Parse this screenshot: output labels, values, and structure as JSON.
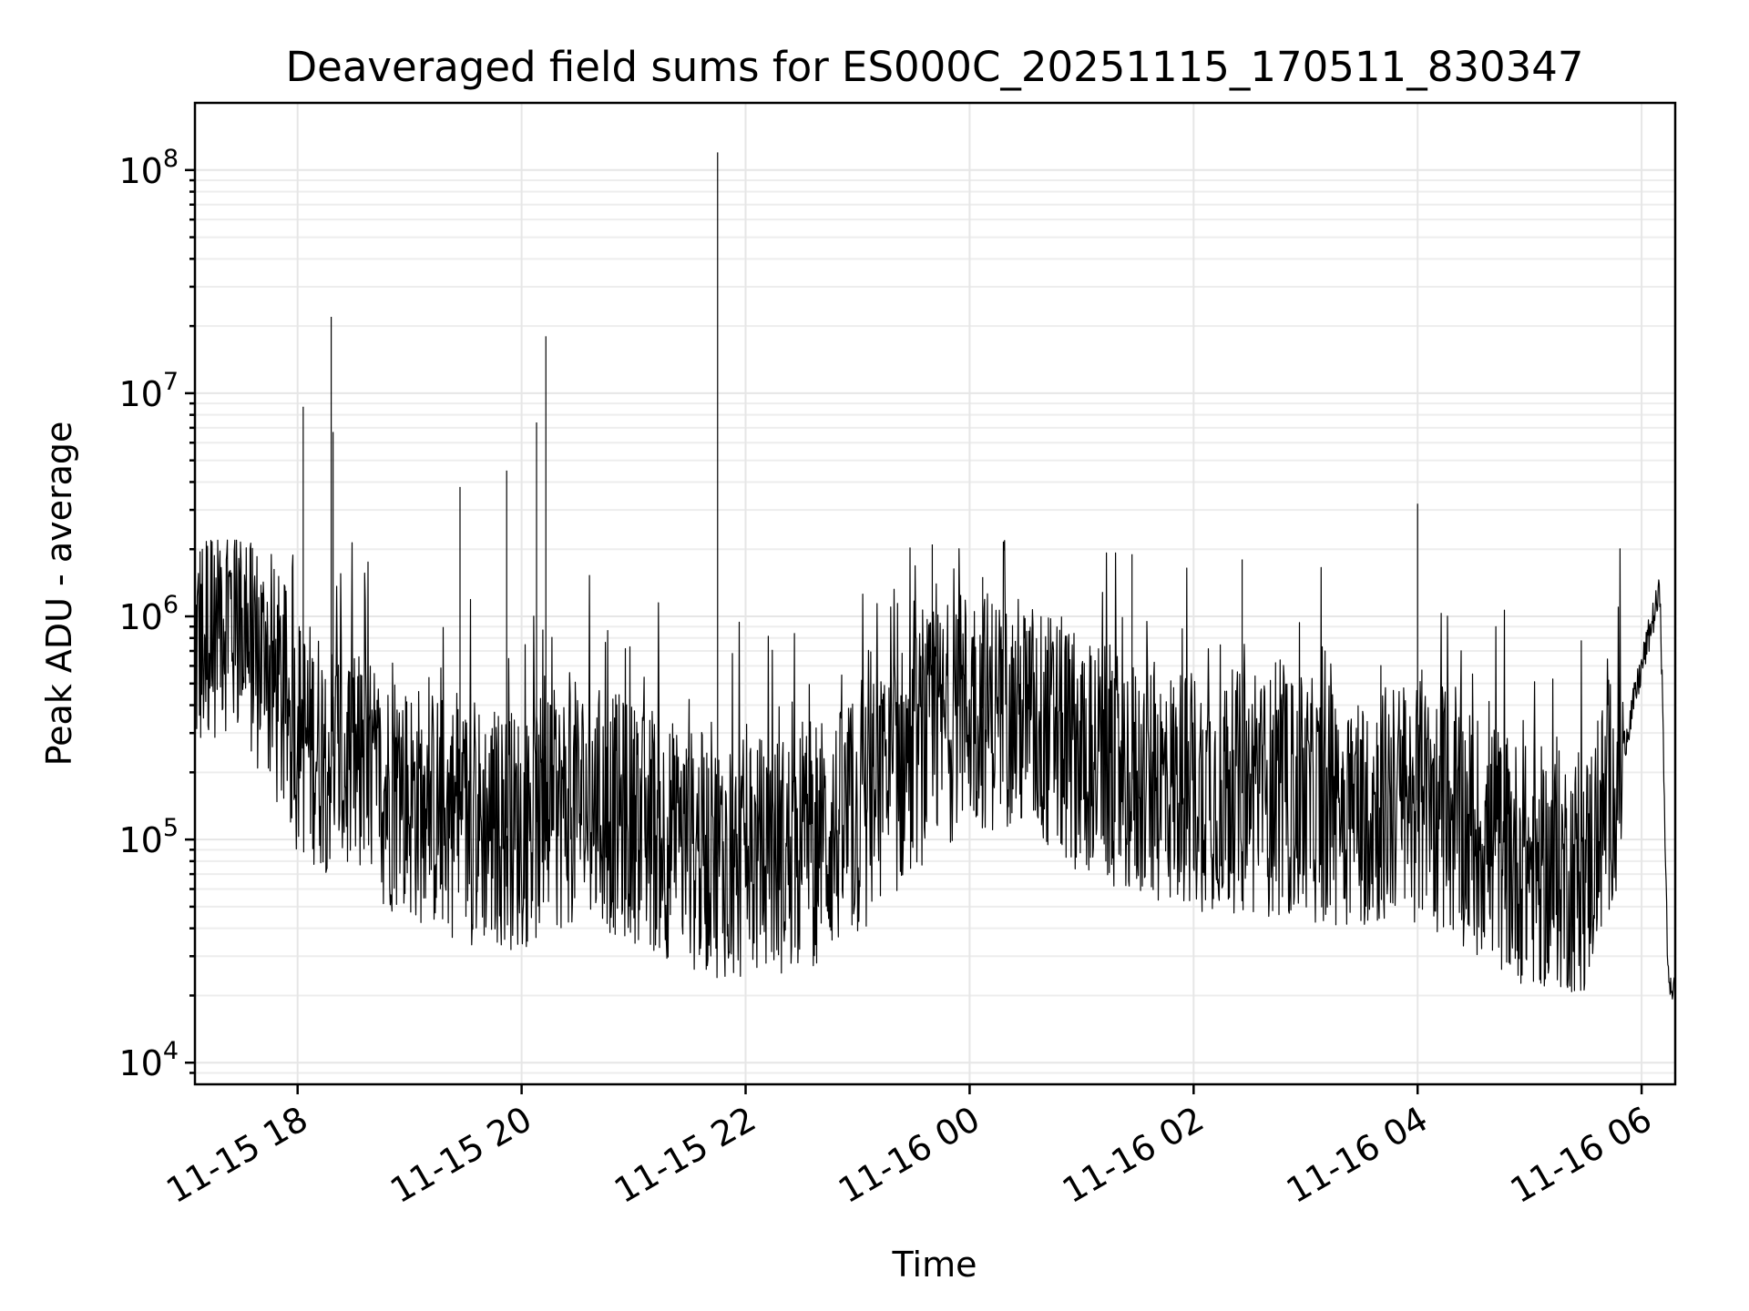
{
  "chart_data": {
    "type": "line",
    "title": "Deaveraged field sums for ES000C_20251115_170511_830347",
    "xlabel": "Time",
    "ylabel": "Peak ADU - average",
    "x_scale": "time",
    "y_scale": "log",
    "xlim": [
      "2025-11-15 17:05",
      "2025-11-16 06:18"
    ],
    "ylim": [
      8000,
      200000000
    ],
    "grid": true,
    "legend": "none",
    "colors": {
      "series": "#000000",
      "grid": "#e6e6e6",
      "frame": "#000000"
    },
    "x_ticks": [
      {
        "value": "2025-11-15 18:00",
        "label": "11-15 18"
      },
      {
        "value": "2025-11-15 20:00",
        "label": "11-15 20"
      },
      {
        "value": "2025-11-15 22:00",
        "label": "11-15 22"
      },
      {
        "value": "2025-11-16 00:00",
        "label": "11-16 00"
      },
      {
        "value": "2025-11-16 02:00",
        "label": "11-16 02"
      },
      {
        "value": "2025-11-16 04:00",
        "label": "11-16 04"
      },
      {
        "value": "2025-11-16 06:00",
        "label": "11-16 06"
      }
    ],
    "y_ticks": [
      {
        "value": 10000,
        "base": "10",
        "exp": "4"
      },
      {
        "value": 100000,
        "base": "10",
        "exp": "5"
      },
      {
        "value": 1000000,
        "base": "10",
        "exp": "6"
      },
      {
        "value": 10000000,
        "base": "10",
        "exp": "7"
      },
      {
        "value": 100000000,
        "base": "10",
        "exp": "8"
      }
    ],
    "series": [
      {
        "name": "",
        "x": [
          "2025-11-15 17:05",
          "2025-11-15 17:20",
          "2025-11-15 17:35",
          "2025-11-15 18:00",
          "2025-11-15 18:15",
          "2025-11-15 18:30",
          "2025-11-15 19:00",
          "2025-11-15 19:30",
          "2025-11-15 20:00",
          "2025-11-15 20:30",
          "2025-11-15 21:00",
          "2025-11-15 21:30",
          "2025-11-15 22:00",
          "2025-11-15 22:30",
          "2025-11-15 23:00",
          "2025-11-15 23:30",
          "2025-11-16 00:00",
          "2025-11-16 00:30",
          "2025-11-16 01:00",
          "2025-11-16 01:30",
          "2025-11-16 02:00",
          "2025-11-16 02:30",
          "2025-11-16 03:00",
          "2025-11-16 03:30",
          "2025-11-16 04:00",
          "2025-11-16 04:30",
          "2025-11-16 05:00",
          "2025-11-16 05:30",
          "2025-11-16 05:50",
          "2025-11-16 06:05",
          "2025-11-16 06:10",
          "2025-11-16 06:14",
          "2025-11-16 06:18"
        ],
        "y": [
          700000,
          1100000,
          800000,
          300000,
          250000,
          200000,
          150000,
          120000,
          110000,
          150000,
          120000,
          90000,
          80000,
          90000,
          120000,
          250000,
          400000,
          350000,
          250000,
          180000,
          170000,
          160000,
          150000,
          140000,
          150000,
          110000,
          75000,
          70000,
          250000,
          900000,
          1300000,
          25000,
          20000
        ]
      }
    ],
    "spikes": [
      {
        "x": "2025-11-15 18:03",
        "y": 8700000
      },
      {
        "x": "2025-11-15 18:18",
        "y": 22000000
      },
      {
        "x": "2025-11-15 18:19",
        "y": 6700000
      },
      {
        "x": "2025-11-15 19:27",
        "y": 3800000
      },
      {
        "x": "2025-11-15 19:52",
        "y": 4500000
      },
      {
        "x": "2025-11-15 20:08",
        "y": 7400000
      },
      {
        "x": "2025-11-15 20:13",
        "y": 18000000
      },
      {
        "x": "2025-11-15 21:45",
        "y": 120000000
      },
      {
        "x": "2025-11-15 23:40",
        "y": 2100000
      },
      {
        "x": "2025-11-16 00:07",
        "y": 1500000
      },
      {
        "x": "2025-11-16 01:27",
        "y": 1900000
      },
      {
        "x": "2025-11-16 02:26",
        "y": 1800000
      },
      {
        "x": "2025-11-16 04:00",
        "y": 3200000
      }
    ]
  }
}
